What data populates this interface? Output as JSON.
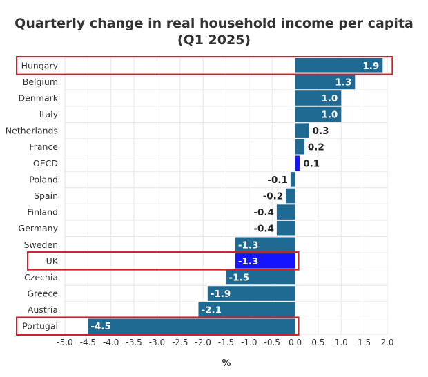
{
  "chart_data": {
    "type": "bar",
    "orientation": "horizontal",
    "title": "Quarterly change in real household income per capita",
    "subtitle": "(Q1 2025)",
    "xlabel": "%",
    "categories": [
      "Hungary",
      "Belgium",
      "Denmark",
      "Italy",
      "Netherlands",
      "France",
      "OECD",
      "Poland",
      "Spain",
      "Finland",
      "Germany",
      "Sweden",
      "UK",
      "Czechia",
      "Greece",
      "Austria",
      "Portugal"
    ],
    "values": [
      1.9,
      1.3,
      1.0,
      1.0,
      0.3,
      0.2,
      0.1,
      -0.1,
      -0.2,
      -0.4,
      -0.4,
      -1.3,
      -1.3,
      -1.5,
      -1.9,
      -2.1,
      -4.5
    ],
    "value_labels": [
      "1.9",
      "1.3",
      "1.0",
      "1.0",
      "0.3",
      "0.2",
      "0.1",
      "-0.1",
      "-0.2",
      "-0.4",
      "-0.4",
      "-1.3",
      "-1.3",
      "-1.5",
      "-1.9",
      "-2.1",
      "-4.5"
    ],
    "xlim": [
      -5.0,
      2.0
    ],
    "xticks": [
      -5.0,
      -4.5,
      -4.0,
      -3.5,
      -3.0,
      -2.5,
      -2.0,
      -1.5,
      -1.0,
      -0.5,
      0.0,
      0.5,
      1.0,
      1.5,
      2.0
    ],
    "xtick_labels": [
      "-5.0",
      "-4.5",
      "-4.0",
      "-3.5",
      "-3.0",
      "-2.5",
      "-2.0",
      "-1.5",
      "-1.0",
      "-0.5",
      "0.0",
      "0.5",
      "1.0",
      "1.5",
      "2.0"
    ],
    "grid": true,
    "colors": {
      "default": "#1f6a93",
      "highlight": "#1414ff",
      "box": "#d0202a",
      "grid": "#e6e6e6"
    },
    "highlighted": [
      "OECD",
      "UK"
    ],
    "boxed": [
      "Hungary",
      "UK",
      "Portugal"
    ]
  }
}
